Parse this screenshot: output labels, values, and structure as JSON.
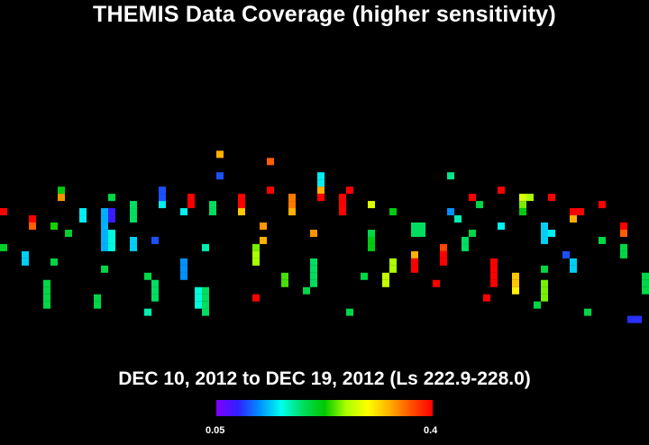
{
  "chart_data": {
    "type": "heatmap",
    "title": "THEMIS Data Coverage (higher sensitivity)",
    "subtitle": "DEC 10, 2012 to DEC 19, 2012 (Ls 222.9-228.0)",
    "colorbar": {
      "min_label": "0.05",
      "max_label": "0.4",
      "min": 0.05,
      "max": 0.4,
      "colormap": [
        "#7f00ff",
        "#3020ff",
        "#0090ff",
        "#00ffee",
        "#00dd60",
        "#00c800",
        "#aaff00",
        "#ffff00",
        "#ffb000",
        "#ff5000",
        "#ff0000"
      ]
    },
    "grid": {
      "cols": 90,
      "rows": 62
    },
    "swaths": [
      {
        "col": 0,
        "rows": [
          29
        ],
        "value": 0.4
      },
      {
        "col": 0,
        "rows": [
          34
        ],
        "value": 0.21
      },
      {
        "col": 3,
        "rows": [
          35,
          36
        ],
        "value": 0.14
      },
      {
        "col": 4,
        "rows": [
          30
        ],
        "value": 0.4
      },
      {
        "col": 4,
        "rows": [
          31
        ],
        "value": 0.36
      },
      {
        "col": 6,
        "rows": [
          39,
          40,
          41,
          42
        ],
        "value": 0.2
      },
      {
        "col": 7,
        "rows": [
          31
        ],
        "value": 0.23
      },
      {
        "col": 7,
        "rows": [
          36
        ],
        "value": 0.2
      },
      {
        "col": 8,
        "rows": [
          26
        ],
        "value": 0.22
      },
      {
        "col": 8,
        "rows": [
          27
        ],
        "value": 0.34
      },
      {
        "col": 9,
        "rows": [
          32
        ],
        "value": 0.21
      },
      {
        "col": 11,
        "rows": [
          29,
          30
        ],
        "value": 0.15
      },
      {
        "col": 13,
        "rows": [
          41,
          42
        ],
        "value": 0.2
      },
      {
        "col": 14,
        "rows": [
          29,
          30,
          31,
          32,
          33,
          34
        ],
        "value": 0.13
      },
      {
        "col": 15,
        "rows": [
          29,
          30
        ],
        "value": 0.08
      },
      {
        "col": 15,
        "rows": [
          32,
          33,
          34
        ],
        "value": 0.16
      },
      {
        "col": 14,
        "rows": [
          37
        ],
        "value": 0.2
      },
      {
        "col": 15,
        "rows": [
          27
        ],
        "value": 0.2
      },
      {
        "col": 18,
        "rows": [
          28,
          29,
          30
        ],
        "value": 0.19
      },
      {
        "col": 18,
        "rows": [
          33,
          34
        ],
        "value": 0.14
      },
      {
        "col": 20,
        "rows": [
          38
        ],
        "value": 0.2
      },
      {
        "col": 21,
        "rows": [
          39,
          40,
          41
        ],
        "value": 0.19
      },
      {
        "col": 20,
        "rows": [
          43
        ],
        "value": 0.17
      },
      {
        "col": 21,
        "rows": [
          33
        ],
        "value": 0.1
      },
      {
        "col": 22,
        "rows": [
          26,
          27
        ],
        "value": 0.1
      },
      {
        "col": 22,
        "rows": [
          28
        ],
        "value": 0.15
      },
      {
        "col": 25,
        "rows": [
          36,
          37,
          38
        ],
        "value": 0.12
      },
      {
        "col": 25,
        "rows": [
          29
        ],
        "value": 0.15
      },
      {
        "col": 26,
        "rows": [
          27,
          28
        ],
        "value": 0.4
      },
      {
        "col": 27,
        "rows": [
          40,
          41,
          42
        ],
        "value": 0.16
      },
      {
        "col": 28,
        "rows": [
          34
        ],
        "value": 0.17
      },
      {
        "col": 28,
        "rows": [
          40,
          41,
          42,
          43
        ],
        "value": 0.19
      },
      {
        "col": 29,
        "rows": [
          28,
          29
        ],
        "value": 0.19
      },
      {
        "col": 30,
        "rows": [
          21
        ],
        "value": 0.33
      },
      {
        "col": 30,
        "rows": [
          24
        ],
        "value": 0.1
      },
      {
        "col": 33,
        "rows": [
          27,
          28
        ],
        "value": 0.4
      },
      {
        "col": 33,
        "rows": [
          29
        ],
        "value": 0.32
      },
      {
        "col": 35,
        "rows": [
          34
        ],
        "value": 0.25
      },
      {
        "col": 35,
        "rows": [
          35,
          36
        ],
        "value": 0.26
      },
      {
        "col": 36,
        "rows": [
          33
        ],
        "value": 0.33
      },
      {
        "col": 35,
        "rows": [
          41
        ],
        "value": 0.4
      },
      {
        "col": 36,
        "rows": [
          31
        ],
        "value": 0.34
      },
      {
        "col": 37,
        "rows": [
          22
        ],
        "value": 0.36
      },
      {
        "col": 37,
        "rows": [
          26
        ],
        "value": 0.4
      },
      {
        "col": 39,
        "rows": [
          38,
          39
        ],
        "value": 0.24
      },
      {
        "col": 40,
        "rows": [
          27,
          28,
          29
        ],
        "value": 0.35
      },
      {
        "col": 40,
        "rows": [
          29
        ],
        "value": 0.33
      },
      {
        "col": 42,
        "rows": [
          40
        ],
        "value": 0.2
      },
      {
        "col": 43,
        "rows": [
          32
        ],
        "value": 0.34
      },
      {
        "col": 43,
        "rows": [
          36,
          37,
          38,
          39
        ],
        "value": 0.19
      },
      {
        "col": 44,
        "rows": [
          24,
          25
        ],
        "value": 0.15
      },
      {
        "col": 44,
        "rows": [
          26
        ],
        "value": 0.33
      },
      {
        "col": 44,
        "rows": [
          27
        ],
        "value": 0.4
      },
      {
        "col": 47,
        "rows": [
          27,
          28
        ],
        "value": 0.4
      },
      {
        "col": 47,
        "rows": [
          29
        ],
        "value": 0.34
      },
      {
        "col": 47,
        "rows": [
          29
        ],
        "value": 0.4
      },
      {
        "col": 48,
        "rows": [
          26
        ],
        "value": 0.4
      },
      {
        "col": 48,
        "rows": [
          43
        ],
        "value": 0.2
      },
      {
        "col": 50,
        "rows": [
          38
        ],
        "value": 0.2
      },
      {
        "col": 51,
        "rows": [
          28
        ],
        "value": 0.28
      },
      {
        "col": 51,
        "rows": [
          33,
          34
        ],
        "value": 0.22
      },
      {
        "col": 51,
        "rows": [
          32
        ],
        "value": 0.2
      },
      {
        "col": 53,
        "rows": [
          38,
          39
        ],
        "value": 0.27
      },
      {
        "col": 54,
        "rows": [
          36,
          37
        ],
        "value": 0.26
      },
      {
        "col": 54,
        "rows": [
          29
        ],
        "value": 0.22
      },
      {
        "col": 57,
        "rows": [
          31,
          32
        ],
        "value": 0.19
      },
      {
        "col": 58,
        "rows": [
          31,
          32
        ],
        "value": 0.19
      },
      {
        "col": 57,
        "rows": [
          35
        ],
        "value": 0.33
      },
      {
        "col": 57,
        "rows": [
          36,
          37
        ],
        "value": 0.4
      },
      {
        "col": 61,
        "rows": [
          34
        ],
        "value": 0.37
      },
      {
        "col": 61,
        "rows": [
          35,
          36
        ],
        "value": 0.4
      },
      {
        "col": 60,
        "rows": [
          39
        ],
        "value": 0.4
      },
      {
        "col": 62,
        "rows": [
          24
        ],
        "value": 0.18
      },
      {
        "col": 62,
        "rows": [
          29
        ],
        "value": 0.12
      },
      {
        "col": 63,
        "rows": [
          30
        ],
        "value": 0.17
      },
      {
        "col": 64,
        "rows": [
          33,
          34
        ],
        "value": 0.19
      },
      {
        "col": 65,
        "rows": [
          32
        ],
        "value": 0.2
      },
      {
        "col": 65,
        "rows": [
          27
        ],
        "value": 0.4
      },
      {
        "col": 66,
        "rows": [
          28
        ],
        "value": 0.2
      },
      {
        "col": 67,
        "rows": [
          41
        ],
        "value": 0.4
      },
      {
        "col": 68,
        "rows": [
          36,
          37,
          38,
          39
        ],
        "value": 0.4
      },
      {
        "col": 69,
        "rows": [
          26
        ],
        "value": 0.4
      },
      {
        "col": 69,
        "rows": [
          31
        ],
        "value": 0.15
      },
      {
        "col": 71,
        "rows": [
          38,
          39
        ],
        "value": 0.32
      },
      {
        "col": 71,
        "rows": [
          40
        ],
        "value": 0.3
      },
      {
        "col": 72,
        "rows": [
          27
        ],
        "value": 0.28
      },
      {
        "col": 72,
        "rows": [
          28
        ],
        "value": 0.25
      },
      {
        "col": 72,
        "rows": [
          29
        ],
        "value": 0.22
      },
      {
        "col": 73,
        "rows": [
          27
        ],
        "value": 0.26
      },
      {
        "col": 74,
        "rows": [
          42
        ],
        "value": 0.2
      },
      {
        "col": 75,
        "rows": [
          31,
          32,
          33
        ],
        "value": 0.14
      },
      {
        "col": 76,
        "rows": [
          32
        ],
        "value": 0.15
      },
      {
        "col": 75,
        "rows": [
          37
        ],
        "value": 0.2
      },
      {
        "col": 75,
        "rows": [
          39,
          40,
          41
        ],
        "value": 0.25
      },
      {
        "col": 76,
        "rows": [
          27
        ],
        "value": 0.4
      },
      {
        "col": 78,
        "rows": [
          35
        ],
        "value": 0.1
      },
      {
        "col": 79,
        "rows": [
          29
        ],
        "value": 0.4
      },
      {
        "col": 79,
        "rows": [
          30
        ],
        "value": 0.33
      },
      {
        "col": 80,
        "rows": [
          29
        ],
        "value": 0.4
      },
      {
        "col": 79,
        "rows": [
          36,
          37
        ],
        "value": 0.14
      },
      {
        "col": 81,
        "rows": [
          43
        ],
        "value": 0.2
      },
      {
        "col": 83,
        "rows": [
          28
        ],
        "value": 0.4
      },
      {
        "col": 83,
        "rows": [
          33
        ],
        "value": 0.2
      },
      {
        "col": 86,
        "rows": [
          31
        ],
        "value": 0.4
      },
      {
        "col": 86,
        "rows": [
          32
        ],
        "value": 0.36
      },
      {
        "col": 86,
        "rows": [
          34,
          35
        ],
        "value": 0.2
      },
      {
        "col": 87,
        "rows": [
          44
        ],
        "value": 0.09
      },
      {
        "col": 88,
        "rows": [
          44
        ],
        "value": 0.09
      },
      {
        "col": 89,
        "rows": [
          38,
          39,
          40
        ],
        "value": 0.2
      }
    ]
  }
}
